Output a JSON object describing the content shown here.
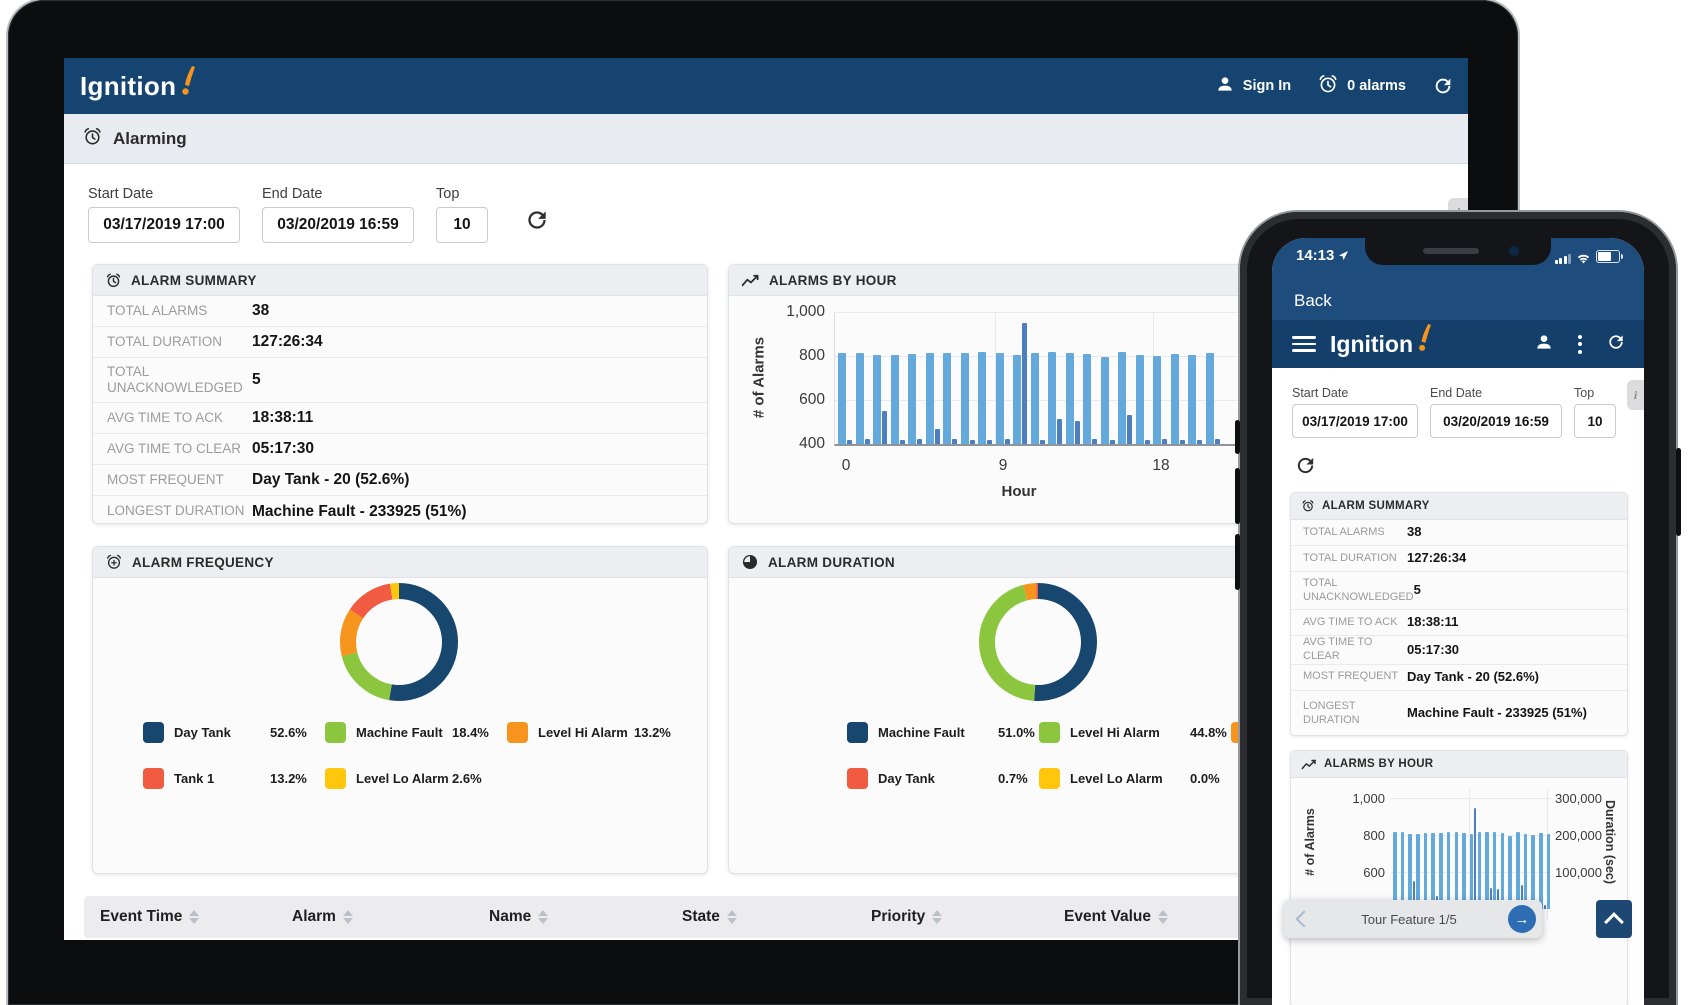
{
  "colors": {
    "navbar": "#164471",
    "appbar": "#133F6A",
    "statusbar": "#1E4C7C",
    "logo_orange": "#F7941D",
    "bar_light": "#63A9DC",
    "bar_dark": "#4D7EC0",
    "navy": "#17466F",
    "green": "#8CC63E",
    "orange": "#F7941D",
    "red": "#F05B41",
    "yellow": "#FFC60B",
    "tour_button": "#2E6DB4"
  },
  "laptop": {
    "navbar": {
      "logo_text": "Ignition",
      "sign_in": "Sign In",
      "alarm_count": "0 alarms"
    },
    "subheader": {
      "title": "Alarming"
    },
    "filters": {
      "start_date": {
        "label": "Start Date",
        "value": "03/17/2019 17:00"
      },
      "end_date": {
        "label": "End Date",
        "value": "03/20/2019 16:59"
      },
      "top": {
        "label": "Top",
        "value": "10"
      }
    },
    "info_tab": "i",
    "alarm_summary": {
      "title": "ALARM SUMMARY",
      "rows": [
        {
          "label": "TOTAL ALARMS",
          "value": "38"
        },
        {
          "label": "TOTAL DURATION",
          "value": "127:26:34"
        },
        {
          "label": "TOTAL UNACKNOWLEDGED",
          "value": "5"
        },
        {
          "label": "AVG TIME TO ACK",
          "value": "18:38:11"
        },
        {
          "label": "AVG TIME TO CLEAR",
          "value": "05:17:30"
        },
        {
          "label": "MOST FREQUENT",
          "value": "Day Tank - 20 (52.6%)"
        },
        {
          "label": "LONGEST DURATION",
          "value": "Machine Fault - 233925 (51%)"
        }
      ]
    },
    "alarms_by_hour": {
      "title": "ALARMS BY HOUR"
    },
    "alarm_frequency": {
      "title": "ALARM FREQUENCY",
      "legend": [
        {
          "label": "Day Tank",
          "pct": "52.6%"
        },
        {
          "label": "Machine Fault",
          "pct": "18.4%"
        },
        {
          "label": "Level Hi Alarm",
          "pct": "13.2%"
        },
        {
          "label": "Tank 1",
          "pct": "13.2%"
        },
        {
          "label": "Level Lo Alarm",
          "pct": "2.6%"
        }
      ]
    },
    "alarm_duration": {
      "title": "ALARM DURATION",
      "legend": [
        {
          "label": "Machine Fault",
          "pct": "51.0%"
        },
        {
          "label": "Level Hi Alarm",
          "pct": "44.8%"
        },
        {
          "label": "",
          "pct": ""
        },
        {
          "label": "Day Tank",
          "pct": "0.7%"
        },
        {
          "label": "Level Lo Alarm",
          "pct": "0.0%"
        }
      ]
    },
    "events_table": {
      "columns": [
        "Event Time",
        "Alarm",
        "Name",
        "State",
        "Priority",
        "Event Value"
      ]
    }
  },
  "phone": {
    "status_bar": {
      "time": "14:13"
    },
    "back_label": "Back",
    "appbar": {
      "logo_text": "Ignition"
    },
    "info_tab": "i",
    "filters": {
      "start_date": {
        "label": "Start Date",
        "value": "03/17/2019 17:00"
      },
      "end_date": {
        "label": "End Date",
        "value": "03/20/2019 16:59"
      },
      "top": {
        "label": "Top",
        "value": "10"
      }
    },
    "alarm_summary": {
      "title": "ALARM SUMMARY",
      "rows": [
        {
          "label": "TOTAL ALARMS",
          "value": "38"
        },
        {
          "label": "TOTAL DURATION",
          "value": "127:26:34"
        },
        {
          "label": "TOTAL UNACKNOWLEDGED",
          "value": "5"
        },
        {
          "label": "AVG TIME TO ACK",
          "value": "18:38:11"
        },
        {
          "label": "AVG TIME TO CLEAR",
          "value": "05:17:30"
        },
        {
          "label": "MOST FREQUENT",
          "value": "Day Tank - 20 (52.6%)"
        },
        {
          "label": "LONGEST DURATION",
          "value": "Machine Fault - 233925 (51%)"
        }
      ]
    },
    "alarms_by_hour": {
      "title": "ALARMS BY HOUR"
    },
    "tour": {
      "label": "Tour Feature 1/5",
      "next_arrow": "→"
    }
  },
  "chart_data": [
    {
      "id": "alarms_by_hour_laptop",
      "type": "bar",
      "title": "ALARMS BY HOUR",
      "xlabel": "Hour",
      "ylabel": "# of Alarms",
      "ylim": [
        400,
        1000
      ],
      "yticks": [
        "1,000",
        "800",
        "600",
        "400"
      ],
      "xticks": [
        "0",
        "9",
        "18"
      ],
      "grid": true,
      "series": [
        {
          "name": "alarms-light",
          "color": "#63A9DC",
          "values": [
            815,
            816,
            806,
            806,
            810,
            812,
            812,
            816,
            818,
            812,
            806,
            816,
            818,
            814,
            810,
            795,
            818,
            806,
            800,
            810,
            806,
            812
          ]
        },
        {
          "name": "alarms-dark",
          "color": "#4D7EC0",
          "values": [
            420,
            422,
            550,
            420,
            422,
            468,
            422,
            420,
            420,
            422,
            948,
            420,
            516,
            506,
            422,
            420,
            530,
            420,
            422,
            420,
            420,
            422
          ]
        }
      ]
    },
    {
      "id": "alarm_frequency",
      "type": "pie",
      "title": "ALARM FREQUENCY",
      "slices": [
        {
          "label": "Day Tank",
          "value": 52.6,
          "color": "#17466F"
        },
        {
          "label": "Machine Fault",
          "value": 18.4,
          "color": "#8CC63E"
        },
        {
          "label": "Level Hi Alarm",
          "value": 13.2,
          "color": "#F7941D"
        },
        {
          "label": "Tank 1",
          "value": 13.2,
          "color": "#F05B41"
        },
        {
          "label": "Level Lo Alarm",
          "value": 2.6,
          "color": "#FFC60B"
        }
      ]
    },
    {
      "id": "alarm_duration",
      "type": "pie",
      "title": "ALARM DURATION",
      "slices": [
        {
          "label": "Machine Fault",
          "value": 51.0,
          "color": "#17466F"
        },
        {
          "label": "Level Hi Alarm",
          "value": 44.8,
          "color": "#8CC63E"
        },
        {
          "label": "",
          "value": 3.5,
          "color": "#F7941D"
        },
        {
          "label": "Day Tank",
          "value": 0.7,
          "color": "#F05B41"
        },
        {
          "label": "Level Lo Alarm",
          "value": 0.0,
          "color": "#FFC60B"
        }
      ]
    },
    {
      "id": "alarms_by_hour_mobile",
      "type": "bar",
      "title": "ALARMS BY HOUR",
      "ylabel_left": "# of Alarms",
      "ylabel_right": "Duration (sec)",
      "ylim": [
        400,
        1000
      ],
      "yticks_left": [
        "1,000",
        "800",
        "600"
      ],
      "yticks_right": [
        "300,000",
        "200,000",
        "100,000"
      ],
      "grid": true,
      "series": [
        {
          "name": "alarms-light",
          "color": "#63A9DC",
          "values": [
            815,
            816,
            806,
            806,
            810,
            812,
            812,
            816,
            818,
            812,
            806,
            816,
            818,
            814,
            810,
            795,
            818,
            806,
            800,
            810,
            806,
            812
          ]
        },
        {
          "name": "alarms-dark",
          "color": "#4D7EC0",
          "values": [
            420,
            422,
            550,
            420,
            422,
            468,
            422,
            420,
            420,
            422,
            948,
            420,
            516,
            506,
            422,
            420,
            530,
            420,
            422,
            420,
            420,
            422
          ]
        }
      ]
    }
  ]
}
